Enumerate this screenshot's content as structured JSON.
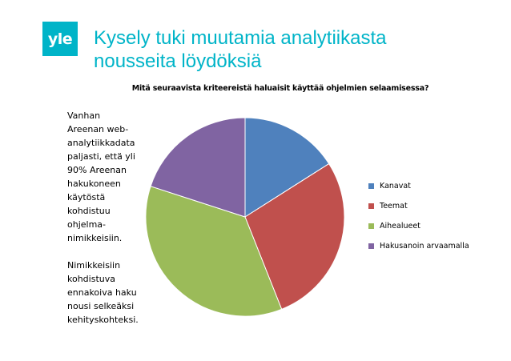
{
  "logo": {
    "text": "yle",
    "color": "#00b4c8"
  },
  "slide": {
    "title_lines": [
      "Kysely tuki muutamia analytiikasta",
      "nousseita löydöksiä"
    ]
  },
  "side_text": {
    "paragraph1": "Vanhan\nAreenan web-\nanalytiikkadata\npaljasti, että yli\n90% Areenan\nhakukoneen\nkäytöstä\nkohdistuu\nohjelma-\nnimikkeisiin.",
    "paragraph2": "Nimikkeisiin\nkohdistuva\nennakoiva haku\nnousi selkeäksi\nkehityskohteksi."
  },
  "chart_data": {
    "type": "pie",
    "title": "Mitä seuraavista kriteereistä haluaisit käyttää ohjelmien selaamisessa?",
    "legend_position": "right",
    "start_angle": "12 o'clock, clockwise",
    "slices": [
      {
        "name": "Kanavat",
        "value": 16,
        "color": "#4f81bd"
      },
      {
        "name": "Teemat",
        "value": 28,
        "color": "#c0504d"
      },
      {
        "name": "Aihealueet",
        "value": 36,
        "color": "#9bbb59"
      },
      {
        "name": "Hakusanoin arvaamalla",
        "value": 20,
        "color": "#8064a2"
      }
    ]
  }
}
